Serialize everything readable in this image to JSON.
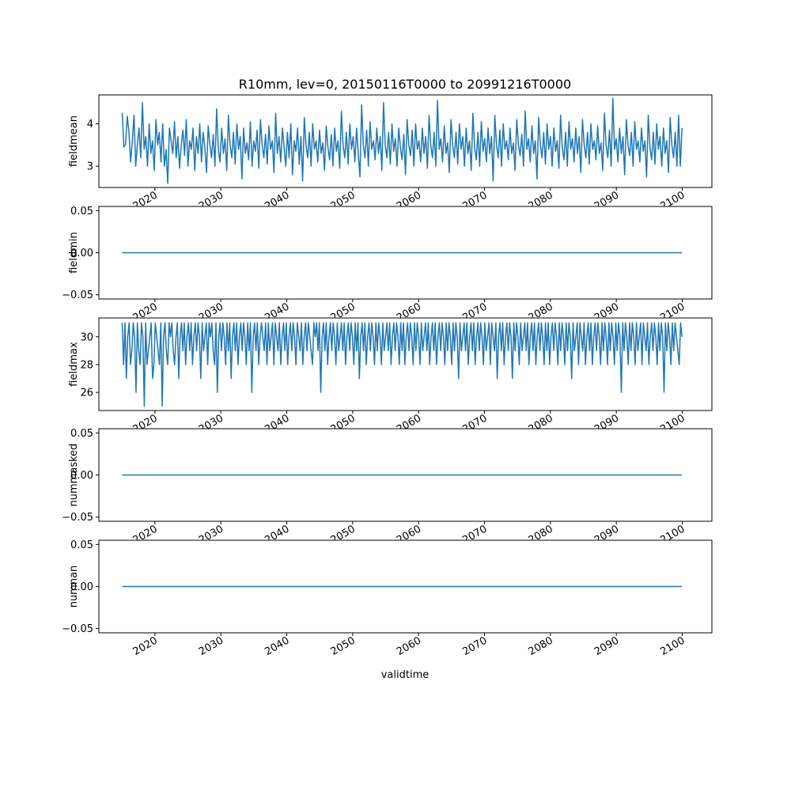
{
  "figure": {
    "title": "R10mm, lev=0, 20150116T0000 to 20991216T0000",
    "xlabel": "validtime",
    "line_color": "#1f77b4"
  },
  "chart_data": [
    {
      "type": "line",
      "ylabel": "fieldmean",
      "xlim": [
        2011.5,
        2104.5
      ],
      "ylim": [
        2.5,
        4.68
      ],
      "yticks": [
        3,
        4
      ],
      "xticks": [
        2020,
        2030,
        2040,
        2050,
        2060,
        2070,
        2080,
        2090,
        2100
      ],
      "x_range": [
        2015.04,
        2099.96
      ],
      "values": [
        4.26,
        3.45,
        3.52,
        4.18,
        3.8,
        3.1,
        3.6,
        4.2,
        3.0,
        3.5,
        3.9,
        3.2,
        4.5,
        3.4,
        3.7,
        3.0,
        4.0,
        3.3,
        3.6,
        2.9,
        4.1,
        3.5,
        3.8,
        3.1,
        4.0,
        3.0,
        3.4,
        2.6,
        3.9,
        3.6,
        3.3,
        4.05,
        3.2,
        3.7,
        2.95,
        3.5,
        3.85,
        3.25,
        4.1,
        3.0,
        3.6,
        3.4,
        3.9,
        2.9,
        3.7,
        3.3,
        4.0,
        3.1,
        3.8,
        3.45,
        2.85,
        3.95,
        3.5,
        3.2,
        3.75,
        3.0,
        4.35,
        3.4,
        3.1,
        3.9,
        3.3,
        3.65,
        2.9,
        4.2,
        3.5,
        3.2,
        3.8,
        3.05,
        4.0,
        3.4,
        3.7,
        2.7,
        3.9,
        3.3,
        3.55,
        3.15,
        4.05,
        3.0,
        3.6,
        3.35,
        3.85,
        2.95,
        4.1,
        3.5,
        3.2,
        3.75,
        3.05,
        3.95,
        3.4,
        3.6,
        2.85,
        4.25,
        3.3,
        3.7,
        3.1,
        3.9,
        3.45,
        3.0,
        3.8,
        3.2,
        4.0,
        2.8,
        3.6,
        3.35,
        3.9,
        3.05,
        3.7,
        2.65,
        4.15,
        3.5,
        3.2,
        3.8,
        3.0,
        4.0,
        3.4,
        3.6,
        3.1,
        3.85,
        3.3,
        3.55,
        2.9,
        3.95,
        3.45,
        3.15,
        3.75,
        3.0,
        3.9,
        3.35,
        3.6,
        2.95,
        4.3,
        3.5,
        3.2,
        3.8,
        3.05,
        4.0,
        3.4,
        3.7,
        3.1,
        3.9,
        3.3,
        2.75,
        4.45,
        3.5,
        3.2,
        3.85,
        3.0,
        4.05,
        3.4,
        3.6,
        3.15,
        3.9,
        3.3,
        3.7,
        2.9,
        4.5,
        3.5,
        3.2,
        3.8,
        3.05,
        4.0,
        3.35,
        3.65,
        3.0,
        3.9,
        3.45,
        3.15,
        3.75,
        2.8,
        4.1,
        3.5,
        3.25,
        3.85,
        3.0,
        4.0,
        3.4,
        3.6,
        3.1,
        3.9,
        3.3,
        3.7,
        2.95,
        4.2,
        3.5,
        3.2,
        3.8,
        3.0,
        4.55,
        3.4,
        3.65,
        3.1,
        3.95,
        3.3,
        3.55,
        2.85,
        4.1,
        3.5,
        3.2,
        3.8,
        3.05,
        4.0,
        3.4,
        3.7,
        3.0,
        3.9,
        3.3,
        3.6,
        2.9,
        4.25,
        3.45,
        3.15,
        3.8,
        3.0,
        4.05,
        3.35,
        3.65,
        3.1,
        3.9,
        3.3,
        3.7,
        2.65,
        4.2,
        3.5,
        3.2,
        3.85,
        3.0,
        4.0,
        3.4,
        3.6,
        3.15,
        3.9,
        3.3,
        3.55,
        2.9,
        4.1,
        3.5,
        3.25,
        3.75,
        3.0,
        4.3,
        3.4,
        3.65,
        3.1,
        3.95,
        3.3,
        3.6,
        2.7,
        4.15,
        3.5,
        3.2,
        3.8,
        3.05,
        4.0,
        3.4,
        3.7,
        3.0,
        3.9,
        3.35,
        3.6,
        2.95,
        4.2,
        3.45,
        3.15,
        3.8,
        3.0,
        4.05,
        3.4,
        3.65,
        3.1,
        3.9,
        3.3,
        3.7,
        2.85,
        4.1,
        3.5,
        3.2,
        3.8,
        3.05,
        4.0,
        3.4,
        3.6,
        3.15,
        3.95,
        3.3,
        3.55,
        2.9,
        4.25,
        3.5,
        3.2,
        3.85,
        3.0,
        4.6,
        3.4,
        3.65,
        3.1,
        3.9,
        3.3,
        3.7,
        2.8,
        4.1,
        3.5,
        3.25,
        3.8,
        3.0,
        4.05,
        3.4,
        3.6,
        3.1,
        3.9,
        3.35,
        3.6,
        2.75,
        4.2,
        3.45,
        3.15,
        3.8,
        3.05,
        4.0,
        3.4,
        3.7,
        3.0,
        3.9,
        3.3,
        3.6,
        2.85,
        4.15,
        3.5,
        3.2,
        3.8,
        3.0,
        4.2,
        3.0,
        3.9
      ]
    },
    {
      "type": "line",
      "ylabel": "fieldmin",
      "xlim": [
        2011.5,
        2104.5
      ],
      "ylim": [
        -0.055,
        0.055
      ],
      "yticks": [
        -0.05,
        0.0,
        0.05
      ],
      "ytick_labels": [
        "−0.05",
        "0.00",
        "0.05"
      ],
      "xticks": [
        2020,
        2030,
        2040,
        2050,
        2060,
        2070,
        2080,
        2090,
        2100
      ],
      "x_range": [
        2015.04,
        2099.96
      ],
      "constant": 0.0
    },
    {
      "type": "line",
      "ylabel": "fieldmax",
      "xlim": [
        2011.5,
        2104.5
      ],
      "ylim": [
        24.7,
        31.35
      ],
      "yticks": [
        26,
        28,
        30
      ],
      "xticks": [
        2020,
        2030,
        2040,
        2050,
        2060,
        2070,
        2080,
        2090,
        2100
      ],
      "x_range": [
        2015.04,
        2099.96
      ],
      "values": [
        31,
        28,
        31,
        27,
        30,
        31,
        28,
        29,
        31,
        30,
        26,
        31,
        29,
        28,
        31,
        30,
        25,
        31,
        28,
        29,
        30,
        31,
        27,
        28,
        31,
        30,
        29,
        28,
        31,
        25,
        30,
        31,
        29,
        28,
        31,
        30,
        31,
        29,
        28,
        30,
        31,
        27,
        30,
        31,
        29,
        31,
        28,
        30,
        31,
        29,
        31,
        28,
        30,
        31,
        29,
        31,
        30,
        27,
        31,
        29,
        30,
        31,
        28,
        31,
        30,
        31,
        29,
        28,
        31,
        26,
        30,
        31,
        29,
        31,
        30,
        28,
        31,
        29,
        31,
        27,
        30,
        31,
        29,
        31,
        28,
        30,
        31,
        29,
        31,
        30,
        28,
        31,
        29,
        31,
        26,
        30,
        31,
        29,
        31,
        28,
        30,
        31,
        30,
        29,
        31,
        28,
        31,
        29,
        30,
        31,
        28,
        31,
        30,
        29,
        31,
        28,
        30,
        31,
        29,
        31,
        28,
        30,
        31,
        29,
        31,
        30,
        28,
        31,
        30,
        29,
        31,
        28,
        30,
        31,
        29,
        31,
        30,
        29,
        28,
        31,
        30,
        31,
        29,
        31,
        26,
        30,
        31,
        29,
        31,
        28,
        30,
        31,
        29,
        31,
        30,
        28,
        31,
        29,
        30,
        31,
        29,
        31,
        28,
        30,
        31,
        29,
        31,
        30,
        28,
        31,
        29,
        31,
        27,
        30,
        31,
        29,
        31,
        28,
        30,
        31,
        29,
        31,
        30,
        28,
        31,
        29,
        31,
        30,
        28,
        31,
        29,
        30,
        31,
        29,
        31,
        28,
        30,
        31,
        29,
        31,
        30,
        28,
        31,
        29,
        31,
        28,
        30,
        31,
        29,
        31,
        30,
        28,
        31,
        29,
        31,
        30,
        28,
        31,
        29,
        30,
        31,
        29,
        31,
        28,
        30,
        31,
        29,
        31,
        28,
        30,
        31,
        29,
        31,
        30,
        28,
        31,
        29,
        31,
        30,
        28,
        31,
        29,
        31,
        30,
        27,
        31,
        29,
        30,
        31,
        29,
        31,
        28,
        30,
        31,
        29,
        31,
        28,
        30,
        31,
        29,
        31,
        30,
        28,
        31,
        29,
        30,
        31,
        28,
        31,
        30,
        29,
        31,
        27,
        30,
        31,
        29,
        31,
        28,
        30,
        31,
        29,
        31,
        30,
        27,
        31,
        29,
        31,
        30,
        28,
        31,
        29,
        30,
        31,
        29,
        31,
        28,
        30,
        31,
        29,
        31,
        28,
        30,
        31,
        29,
        31,
        30,
        28,
        31,
        29,
        31,
        28,
        30,
        31,
        29,
        31,
        30,
        28,
        31,
        29,
        31,
        30,
        28,
        31,
        29,
        31,
        30,
        27,
        31,
        29,
        30,
        31,
        28,
        31,
        30,
        29,
        31,
        28,
        30,
        31,
        29,
        31,
        28,
        30,
        31,
        29,
        31,
        30,
        28,
        31,
        29,
        31,
        30,
        28,
        31,
        29,
        31,
        30,
        28,
        31,
        29,
        31,
        30,
        26,
        31,
        29,
        31,
        30,
        28,
        31,
        29,
        31,
        30,
        28,
        31,
        29,
        30,
        31,
        28,
        31,
        30,
        29,
        31,
        28,
        30,
        31,
        29,
        31,
        30,
        28,
        31,
        29,
        31,
        30,
        26,
        31,
        29,
        31,
        30,
        28,
        31,
        29,
        31,
        30,
        29,
        28,
        31,
        30
      ]
    },
    {
      "type": "line",
      "ylabel": "nummasked",
      "xlim": [
        2011.5,
        2104.5
      ],
      "ylim": [
        -0.055,
        0.055
      ],
      "yticks": [
        -0.05,
        0.0,
        0.05
      ],
      "ytick_labels": [
        "−0.05",
        "0.00",
        "0.05"
      ],
      "xticks": [
        2020,
        2030,
        2040,
        2050,
        2060,
        2070,
        2080,
        2090,
        2100
      ],
      "x_range": [
        2015.04,
        2099.96
      ],
      "constant": 0.0
    },
    {
      "type": "line",
      "ylabel": "numnan",
      "xlim": [
        2011.5,
        2104.5
      ],
      "ylim": [
        -0.055,
        0.055
      ],
      "yticks": [
        -0.05,
        0.0,
        0.05
      ],
      "ytick_labels": [
        "−0.05",
        "0.00",
        "0.05"
      ],
      "xticks": [
        2020,
        2030,
        2040,
        2050,
        2060,
        2070,
        2080,
        2090,
        2100
      ],
      "x_range": [
        2015.04,
        2099.96
      ],
      "constant": 0.0
    }
  ]
}
